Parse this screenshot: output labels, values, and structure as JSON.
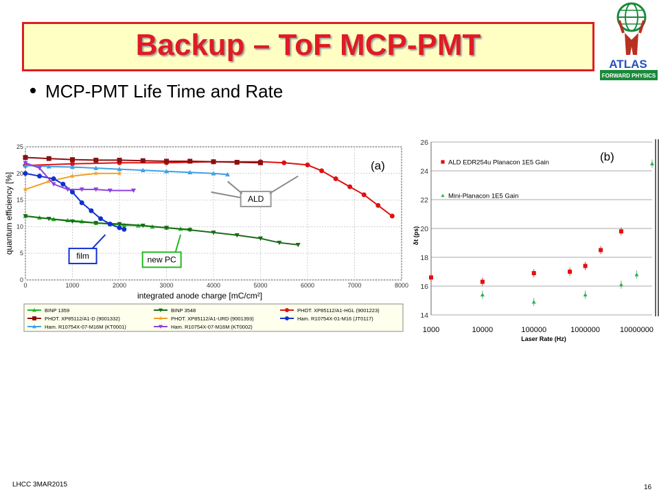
{
  "slide": {
    "title": "Backup – ToF MCP-PMT",
    "bullet": "MCP-PMT Life Time and Rate",
    "footer_left": "LHCC 3MAR2015",
    "page_number": "16",
    "logo_text": "ATLAS",
    "logo_subtext": "FORWARD PHYSICS",
    "title_color": "#e01b22",
    "title_bg": "#ffffc4"
  },
  "chart_data": [
    {
      "type": "line",
      "panel_label": "(a)",
      "xlabel": "integrated anode charge  [mC/cm²]",
      "ylabel": "quantum efficiency  [%]",
      "xlim": [
        0,
        8000
      ],
      "ylim": [
        0,
        25
      ],
      "xticks": [
        "0",
        "1000",
        "2000",
        "3000",
        "4000",
        "5000",
        "6000",
        "7000",
        "8000"
      ],
      "yticks": [
        "0",
        "5",
        "10",
        "15",
        "20",
        "25"
      ],
      "grid": true,
      "annotations": [
        {
          "text": "ALD",
          "x": 4900,
          "y": 15.2
        },
        {
          "text": "film",
          "x": 1220,
          "y": 4.5
        },
        {
          "text": "new PC",
          "x": 2900,
          "y": 3.8
        }
      ],
      "legend": [
        "BINP 1359",
        "BINP 3548",
        "PHOT. XP85112/A1-HGL (9001223)",
        "PHOT. XP85112/A1-D (9001332)",
        "PHOT. XP85112/A1-URD (9001393)",
        "Ham. R10754X-01-M16 (JT0117)",
        "Ham. R10754X-07-M16M (KT0001)",
        "Ham. R10754X-07-M16M (KT0002)"
      ],
      "series": [
        {
          "name": "BINP 1359",
          "color": "#1fb81f",
          "marker": "triangle-up",
          "x": [
            0,
            300,
            600,
            900,
            1200,
            1500,
            1800,
            2100,
            2400,
            2700,
            3000,
            3300,
            3500
          ],
          "y": [
            12,
            11.7,
            11.4,
            11.2,
            11,
            10.7,
            10.5,
            10.3,
            10.2,
            10,
            9.8,
            9.6,
            9.5
          ]
        },
        {
          "name": "BINP 3548",
          "color": "#1a6a1a",
          "marker": "triangle-down",
          "x": [
            0,
            500,
            1000,
            1500,
            2000,
            2500,
            3000,
            3500,
            4000,
            4500,
            5000,
            5400,
            5800
          ],
          "y": [
            12,
            11.5,
            11,
            10.7,
            10.5,
            10.2,
            9.8,
            9.4,
            8.9,
            8.4,
            7.8,
            7,
            6.6
          ]
        },
        {
          "name": "PHOT. XP85112/A1-HGL (9001223)",
          "color": "#e01010",
          "marker": "circle",
          "x": [
            0,
            1000,
            2000,
            3000,
            4000,
            5000,
            5500,
            6000,
            6300,
            6600,
            6900,
            7200,
            7500,
            7800
          ],
          "y": [
            21.5,
            21.8,
            22,
            22,
            22.2,
            22.2,
            22,
            21.6,
            20.5,
            19,
            17.5,
            16,
            14,
            12
          ]
        },
        {
          "name": "PHOT. XP85112/A1-D (9001332)",
          "color": "#8b1010",
          "marker": "square",
          "x": [
            0,
            500,
            1000,
            1500,
            2000,
            2500,
            3000,
            3500,
            4000,
            4500,
            5000
          ],
          "y": [
            23,
            22.8,
            22.6,
            22.5,
            22.5,
            22.4,
            22.3,
            22.3,
            22.2,
            22.1,
            22
          ]
        },
        {
          "name": "PHOT. XP85112/A1-URD (9001393)",
          "color": "#f0a020",
          "marker": "star",
          "x": [
            0,
            500,
            1000,
            1500,
            2000
          ],
          "y": [
            17,
            18.5,
            19.5,
            20,
            20
          ]
        },
        {
          "name": "Ham. R10754X-01-M16 (JT0117)",
          "color": "#1030d0",
          "marker": "circle",
          "x": [
            0,
            300,
            600,
            800,
            1000,
            1200,
            1400,
            1600,
            1800,
            2000,
            2100
          ],
          "y": [
            20,
            19.5,
            19,
            18,
            16.5,
            14.5,
            13,
            11.5,
            10.5,
            9.8,
            9.5
          ]
        },
        {
          "name": "Ham. R10754X-07-M16M (KT0001)",
          "color": "#40a0e8",
          "marker": "triangle-up",
          "x": [
            0,
            500,
            1000,
            1500,
            2000,
            2500,
            3000,
            3500,
            4000,
            4300
          ],
          "y": [
            21.5,
            21.3,
            21.2,
            21,
            20.8,
            20.6,
            20.4,
            20.2,
            20,
            19.8
          ]
        },
        {
          "name": "Ham. R10754X-07-M16M (KT0002)",
          "color": "#9040e0",
          "marker": "triangle-down",
          "x": [
            0,
            300,
            600,
            900,
            1200,
            1500,
            1800,
            2300
          ],
          "y": [
            22,
            21,
            18,
            17,
            17,
            17,
            16.8,
            16.8
          ]
        }
      ]
    },
    {
      "type": "scatter",
      "panel_label": "(b)",
      "xlabel": "Laser Rate (Hz)",
      "ylabel": "δt (ps)",
      "xscale": "log",
      "xlim": [
        1000,
        20000000
      ],
      "ylim": [
        14,
        26
      ],
      "xticks": [
        "1000",
        "10000",
        "100000",
        "1000000",
        "10000000"
      ],
      "yticks": [
        "14",
        "16",
        "18",
        "20",
        "22",
        "24",
        "26"
      ],
      "grid": true,
      "legend_placement": "top-left",
      "series": [
        {
          "name": "ALD EDR254u Planacon  1E5 Gain",
          "color": "#e01010",
          "marker": "square",
          "x": [
            1000,
            10000,
            100000,
            500000,
            1000000,
            2000000,
            5000000
          ],
          "y": [
            16.6,
            16.3,
            16.9,
            17,
            17.4,
            18.5,
            19.8
          ]
        },
        {
          "name": "Mini-Planacon 1E5 Gain",
          "color": "#30b050",
          "marker": "triangle-up",
          "x": [
            10000,
            100000,
            1000000,
            5000000,
            10000000,
            20000000
          ],
          "y": [
            15.4,
            14.9,
            15.4,
            16.1,
            16.8,
            24.5
          ]
        }
      ]
    }
  ]
}
